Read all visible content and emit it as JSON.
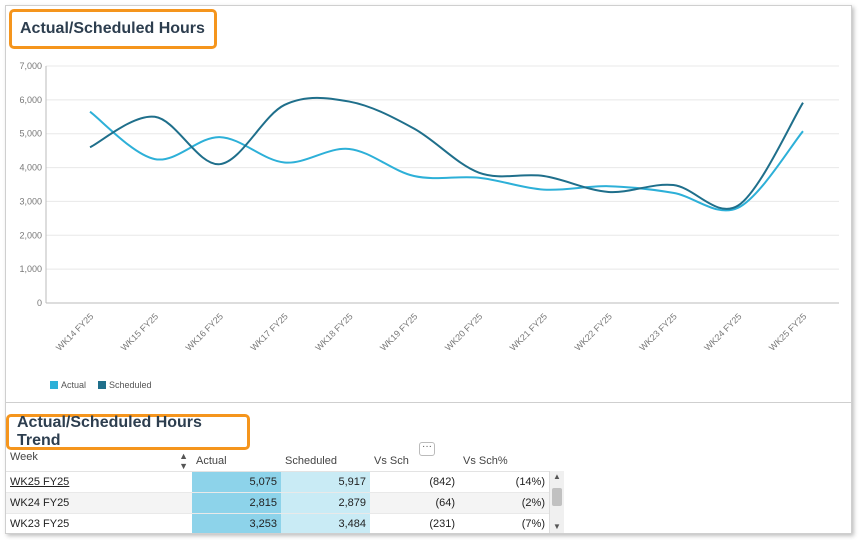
{
  "titles": {
    "chart_title": "Actual/Scheduled Hours",
    "table_title": "Actual/Scheduled Hours Trend"
  },
  "colors": {
    "actual": "#2db0d8",
    "scheduled": "#1f6f8b",
    "highlight": "#f5951d"
  },
  "chart_data": {
    "type": "line",
    "categories": [
      "WK14 FY25",
      "WK15 FY25",
      "WK16 FY25",
      "WK17 FY25",
      "WK18 FY25",
      "WK19 FY25",
      "WK20 FY25",
      "WK21 FY25",
      "WK22 FY25",
      "WK23 FY25",
      "WK24 FY25",
      "WK25 FY25"
    ],
    "series": [
      {
        "name": "Actual",
        "values": [
          5650,
          4250,
          4900,
          4150,
          4550,
          3750,
          3700,
          3350,
          3450,
          3253,
          2815,
          5075
        ]
      },
      {
        "name": "Scheduled",
        "values": [
          4600,
          5500,
          4100,
          5850,
          5950,
          5150,
          3850,
          3750,
          3280,
          3484,
          2879,
          5917
        ]
      }
    ],
    "ylim": [
      0,
      7000
    ],
    "yticks": [
      "7,000",
      "6,000",
      "5,000",
      "4,000",
      "3,000",
      "2,000",
      "1,000",
      "0"
    ],
    "grid": true,
    "legend_position": "bottom-left"
  },
  "legend": {
    "actual": "Actual",
    "scheduled": "Scheduled"
  },
  "table": {
    "headers": [
      "Week",
      "Actual",
      "Scheduled",
      "Vs Sch",
      "Vs Sch%"
    ],
    "rows": [
      {
        "week": "WK25 FY25",
        "actual": "5,075",
        "scheduled": "5,917",
        "vs": "(842)",
        "vsp": "(14%)"
      },
      {
        "week": "WK24 FY25",
        "actual": "2,815",
        "scheduled": "2,879",
        "vs": "(64)",
        "vsp": "(2%)"
      },
      {
        "week": "WK23 FY25",
        "actual": "3,253",
        "scheduled": "3,484",
        "vs": "(231)",
        "vsp": "(7%)"
      }
    ],
    "more_label": "···"
  }
}
